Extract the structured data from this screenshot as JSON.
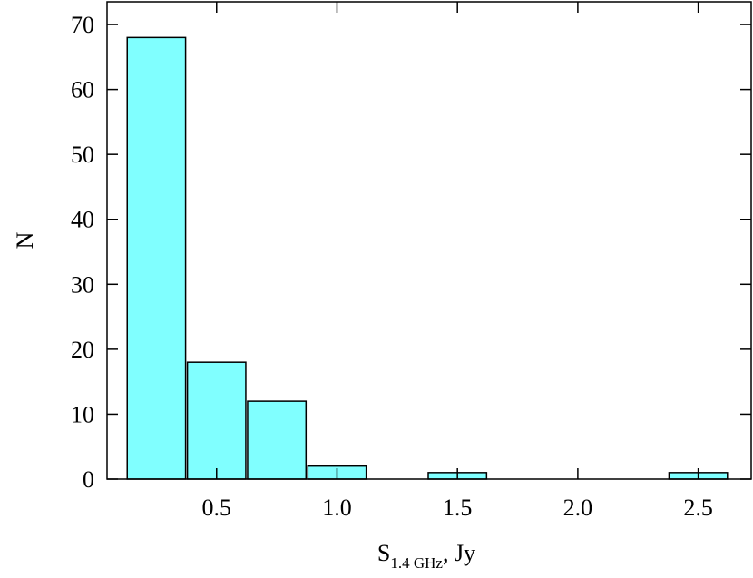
{
  "chart_data": {
    "type": "histogram",
    "xlabel": {
      "main": "S",
      "subscript": "1.4 GHz",
      "rest": ", Jy"
    },
    "ylabel": "N",
    "bins": [
      0.125,
      0.375,
      0.625,
      0.875,
      1.125,
      1.375,
      1.625,
      1.875,
      2.125,
      2.375,
      2.625
    ],
    "values": [
      68,
      18,
      12,
      2,
      0,
      1,
      0,
      0,
      0,
      1
    ],
    "color": "#80ffff",
    "xlim": [
      0.045,
      2.72
    ],
    "ylim": [
      0,
      73.5
    ],
    "xticks": [
      0.5,
      {
        "value": 1,
        "label": "1.0"
      },
      1.5,
      {
        "value": 2,
        "label": "2.0"
      },
      2.5
    ],
    "yticks": [
      0,
      10,
      20,
      30,
      40,
      50,
      60,
      70
    ]
  }
}
